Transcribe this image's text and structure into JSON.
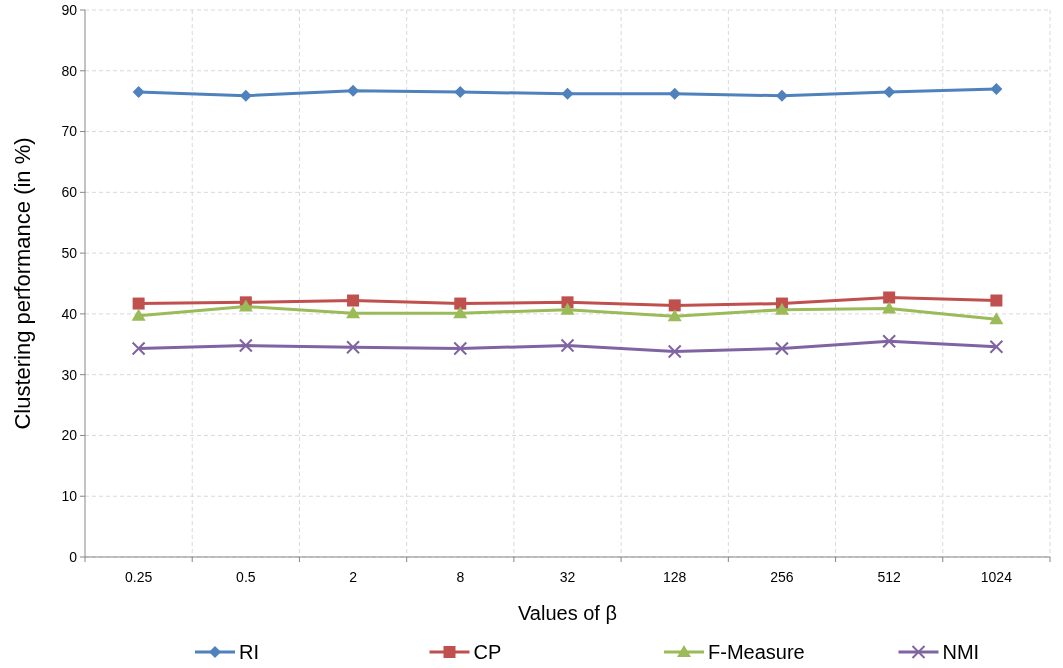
{
  "chart_data": {
    "type": "line",
    "xlabel": "Values of β",
    "ylabel": "Clustering  performance (in %)",
    "categories": [
      "0.25",
      "0.5",
      "2",
      "8",
      "32",
      "128",
      "256",
      "512",
      "1024"
    ],
    "ylim": [
      0,
      90
    ],
    "yticks": [
      0,
      10,
      20,
      30,
      40,
      50,
      60,
      70,
      80,
      90
    ],
    "grid": true,
    "legend": "bottom",
    "line_style": "solid",
    "series": [
      {
        "name": "RI",
        "color": "#4f81bd",
        "marker": "diamond",
        "values": [
          76.5,
          75.9,
          76.7,
          76.5,
          76.2,
          76.2,
          75.9,
          76.5,
          77.0
        ]
      },
      {
        "name": "CP",
        "color": "#c0504d",
        "marker": "square",
        "values": [
          41.7,
          41.9,
          42.2,
          41.7,
          41.9,
          41.4,
          41.7,
          42.7,
          42.2
        ]
      },
      {
        "name": "F-Measure",
        "color": "#9bbb59",
        "marker": "triangle",
        "values": [
          39.7,
          41.2,
          40.1,
          40.1,
          40.7,
          39.6,
          40.7,
          40.9,
          39.1
        ]
      },
      {
        "name": "NMI",
        "color": "#8064a2",
        "marker": "cross",
        "values": [
          34.3,
          34.8,
          34.5,
          34.3,
          34.8,
          33.8,
          34.3,
          35.5,
          34.6
        ]
      }
    ]
  }
}
